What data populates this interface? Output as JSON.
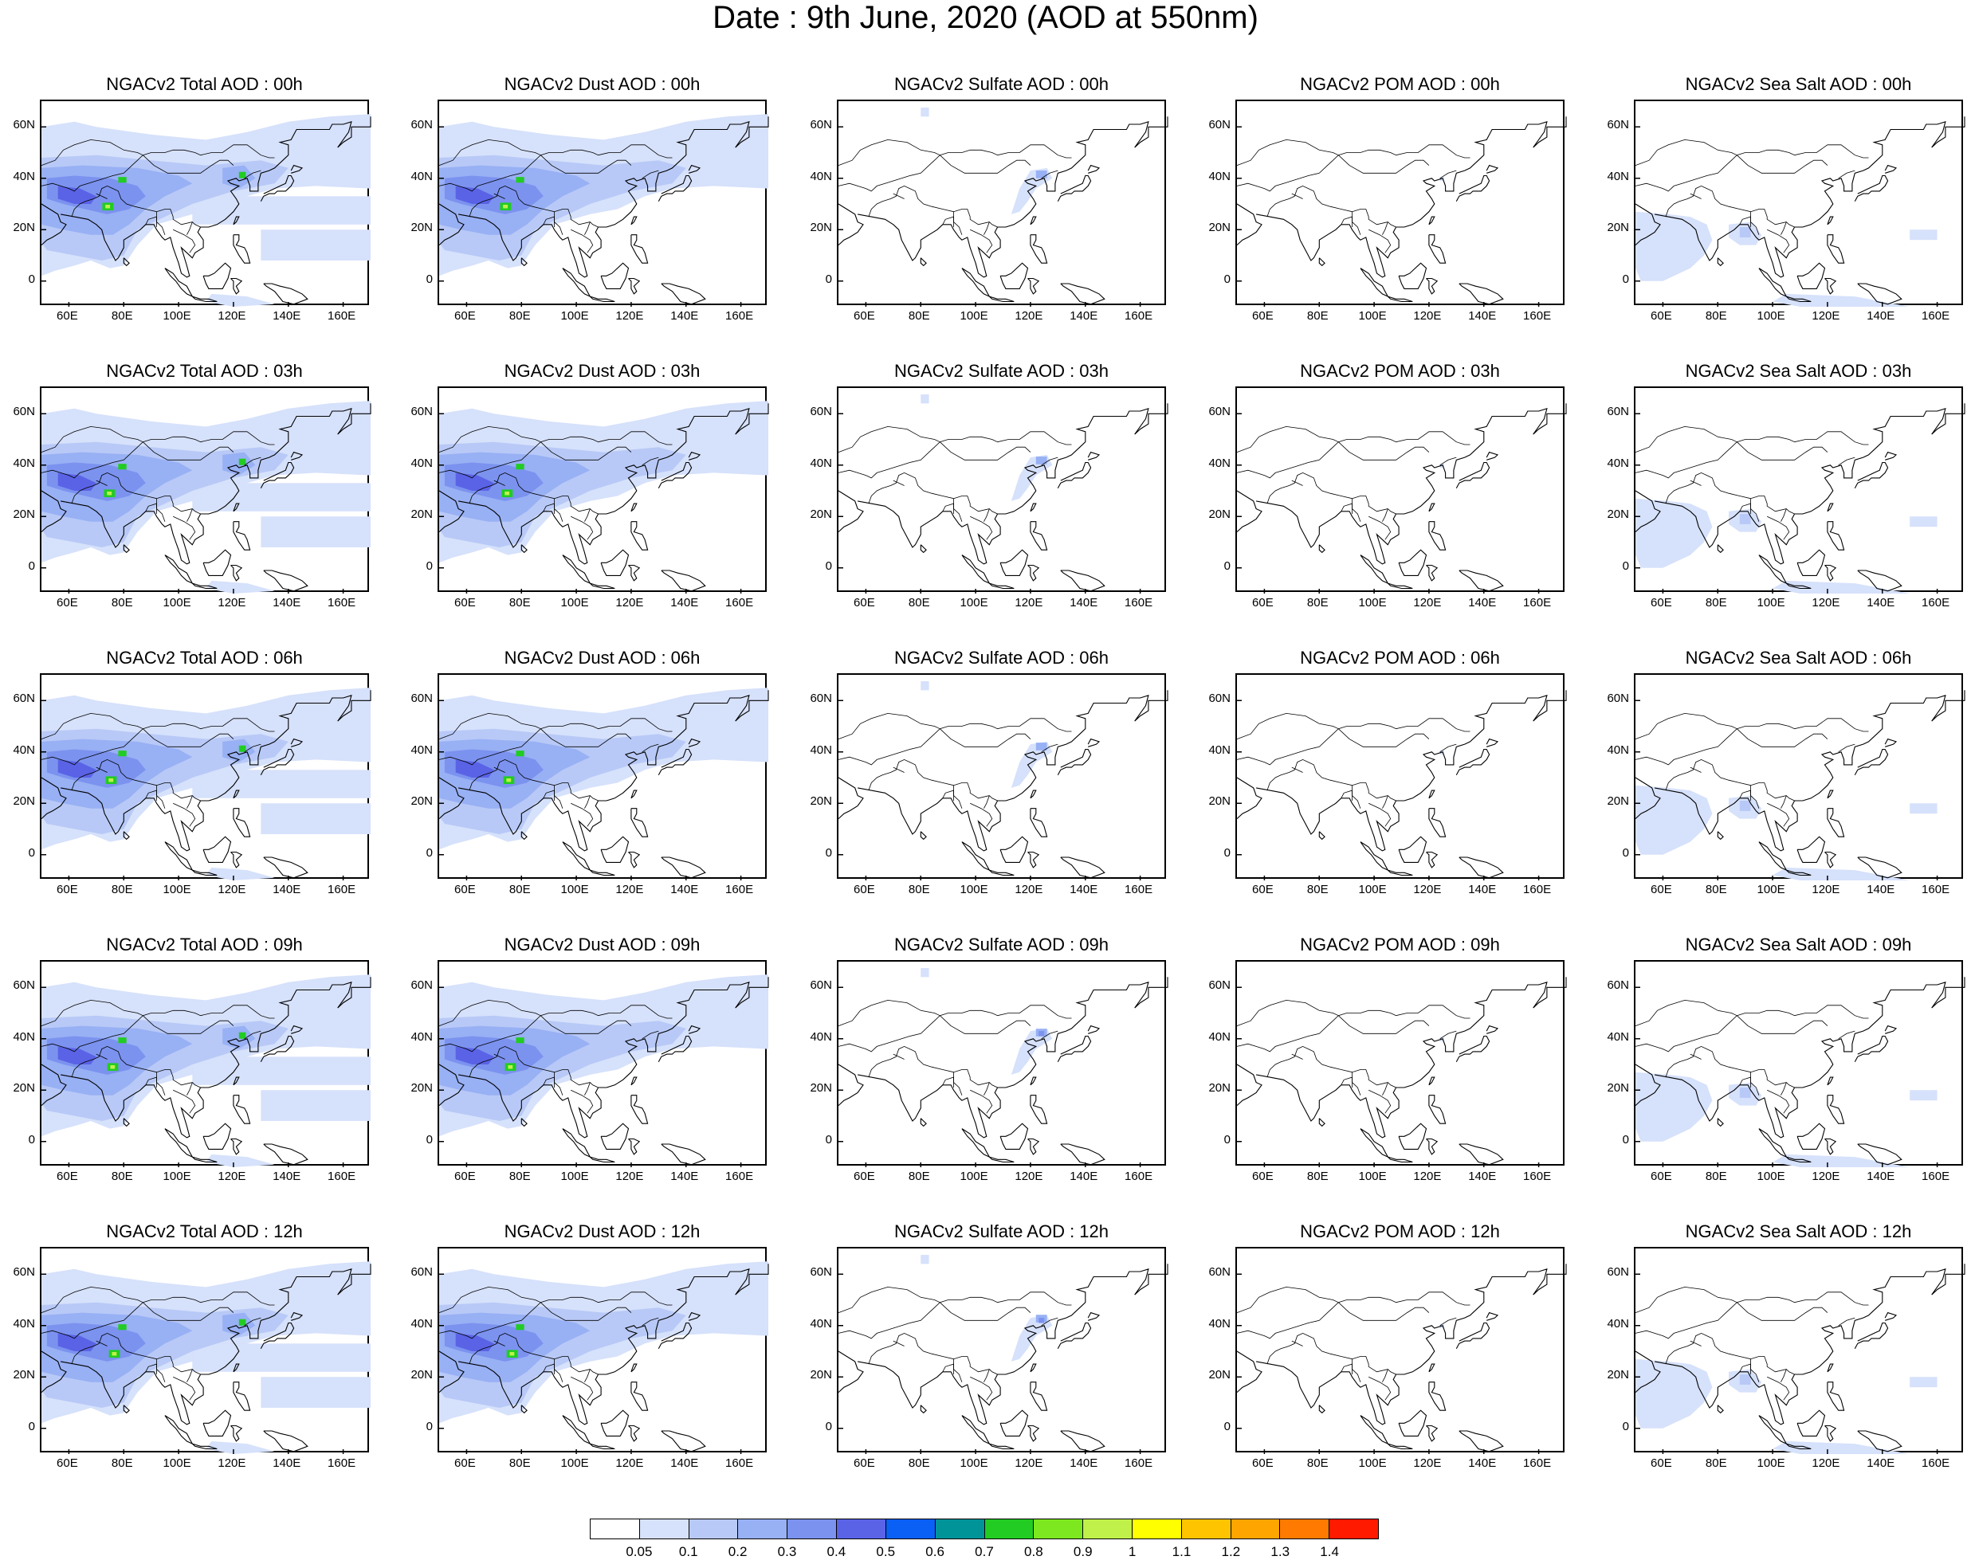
{
  "title": "Date : 9th June, 2020 (AOD at 550nm)",
  "columns": [
    {
      "species": "total"
    },
    {
      "species": "dust"
    },
    {
      "species": "sulfate"
    },
    {
      "species": "pom"
    },
    {
      "species": "seasalt"
    }
  ],
  "rows": [
    {
      "hour": "00h",
      "titles": [
        "NGACv2 Total AOD : 00h",
        "NGACv2 Dust AOD : 00h",
        "NGACv2 Sulfate AOD : 00h",
        "NGACv2 POM AOD : 00h",
        "NGACv2 Sea Salt AOD : 00h"
      ]
    },
    {
      "hour": "03h",
      "titles": [
        "NGACv2 Total AOD : 03h",
        "NGACv2 Dust AOD : 03h",
        "NGACv2 Sulfate AOD : 03h",
        "NGACv2 POM AOD : 03h",
        "NGACv2 Sea Salt AOD : 03h"
      ]
    },
    {
      "hour": "06h",
      "titles": [
        "NGACv2 Total AOD : 06h",
        "NGACv2 Dust AOD : 06h",
        "NGACv2 Sulfate AOD : 06h",
        "NGACv2 POM AOD : 06h",
        "NGACv2 Sea Salt AOD : 06h"
      ]
    },
    {
      "hour": "09h",
      "titles": [
        "NGACv2 Total AOD : 09h",
        "NGACv2 Dust AOD : 09h",
        "NGACv2 Sulfate AOD : 09h",
        "NGACv2 POM AOD : 09h",
        "NGACv2 Sea Salt  AOD : 09h"
      ]
    },
    {
      "hour": "12h",
      "titles": [
        "NGACv2 Total AOD  : 12h",
        "NGACv2 Dust AOD : 12h",
        "NGACv2 Sulfate AOD : 12h",
        "NGACv2 POM  AOD : 12h",
        "NGACv2 Sea Salt  AOD : 12h"
      ]
    }
  ],
  "axes": {
    "lon_min": 50,
    "lon_max": 170,
    "lat_min": -10,
    "lat_max": 70,
    "lat_ticks": [
      {
        "value": 60,
        "label": "60N"
      },
      {
        "value": 40,
        "label": "40N"
      },
      {
        "value": 20,
        "label": "20N"
      },
      {
        "value": 0,
        "label": "0"
      }
    ],
    "lon_ticks": [
      {
        "value": 60,
        "label": "60E"
      },
      {
        "value": 80,
        "label": "80E"
      },
      {
        "value": 100,
        "label": "100E"
      },
      {
        "value": 120,
        "label": "120E"
      },
      {
        "value": 140,
        "label": "140E"
      },
      {
        "value": 160,
        "label": "160E"
      }
    ]
  },
  "colorbar": {
    "colors": [
      "#ffffff",
      "#d6e1fb",
      "#b8c9f7",
      "#98b0f4",
      "#7b92ef",
      "#5a63e6",
      "#0a5ff5",
      "#009499",
      "#22cc22",
      "#7de81f",
      "#c0f04a",
      "#ffff00",
      "#ffc400",
      "#ffa500",
      "#ff7a00",
      "#ff1a00"
    ],
    "labels": [
      "0.05",
      "0.1",
      "0.2",
      "0.3",
      "0.4",
      "0.5",
      "0.6",
      "0.7",
      "0.8",
      "0.9",
      "1",
      "1.1",
      "1.2",
      "1.3",
      "1.4"
    ]
  }
}
